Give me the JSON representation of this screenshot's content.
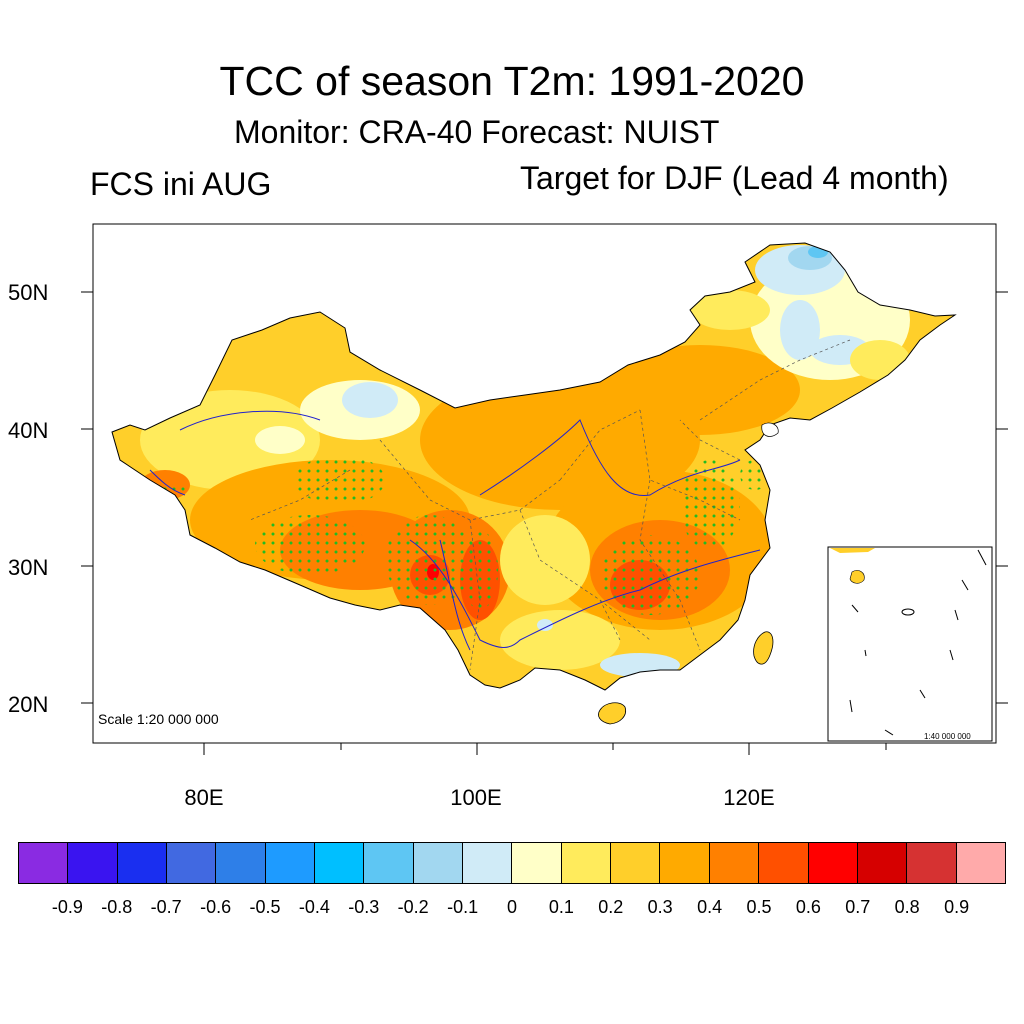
{
  "title": "TCC of season T2m: 1991-2020",
  "subtitle": "Monitor: CRA-40   Forecast: NUIST",
  "left_label": "FCS ini AUG",
  "right_label": "Target for DJF (Lead 4 month)",
  "scale_main": "Scale 1:20 000 000",
  "scale_inset": "1:40 000 000",
  "lat_labels": [
    "50N",
    "40N",
    "30N",
    "20N"
  ],
  "lon_labels": [
    "80E",
    "100E",
    "120E"
  ],
  "colorbar": {
    "colors": [
      "#8a2be2",
      "#3a14f0",
      "#1a2ff0",
      "#4169e1",
      "#2e7fe8",
      "#1e9bff",
      "#00bfff",
      "#5ec6f3",
      "#a2d7f0",
      "#d0ebf7",
      "#ffffc8",
      "#ffeb5c",
      "#ffcf2a",
      "#ffaa00",
      "#ff8000",
      "#ff5000",
      "#ff0000",
      "#d60000",
      "#d63232",
      "#ffaaaa"
    ],
    "labels": [
      "-0.9",
      "-0.8",
      "-0.7",
      "-0.6",
      "-0.5",
      "-0.4",
      "-0.3",
      "-0.2",
      "-0.1",
      "0",
      "0.1",
      "0.2",
      "0.3",
      "0.4",
      "0.5",
      "0.6",
      "0.7",
      "0.8",
      "0.9"
    ]
  },
  "map_colors": {
    "land_base": "#ffcf2a",
    "high": "#ffaa00",
    "higher": "#ff8000",
    "peak": "#ff5000",
    "top": "#ff0000",
    "low": "#ffeb5c",
    "neutral": "#ffffc8",
    "neg": "#d0ebf7",
    "neg2": "#a2d7f0",
    "neg3": "#5ec6f3",
    "stipple": "#22bb22",
    "river": "#2222cc"
  }
}
